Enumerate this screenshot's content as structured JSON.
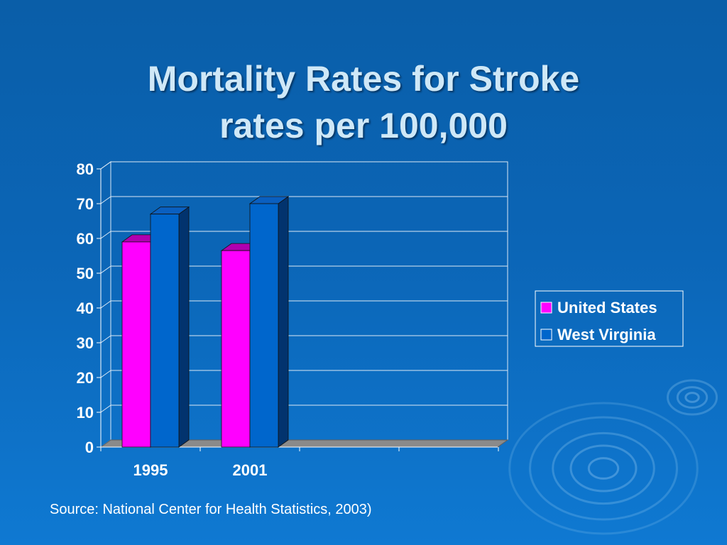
{
  "slide": {
    "title_line1": "Mortality Rates for Stroke",
    "title_line2": "rates per 100,000",
    "source": "Source:  National Center for Health Statistics, 2003)"
  },
  "colors": {
    "united_states": "#ff00ff",
    "west_virginia": "#0066cc",
    "background": "#0b65b6"
  },
  "chart_data": {
    "type": "bar",
    "categories": [
      "1995",
      "2001"
    ],
    "series": [
      {
        "name": "United States",
        "values": [
          59,
          56.5
        ]
      },
      {
        "name": "West Virginia",
        "values": [
          67,
          70
        ]
      }
    ],
    "ylim": [
      0,
      80
    ],
    "yticks": [
      0,
      10,
      20,
      30,
      40,
      50,
      60,
      70,
      80
    ],
    "grid": true,
    "legend_position": "right",
    "three_d": true
  }
}
